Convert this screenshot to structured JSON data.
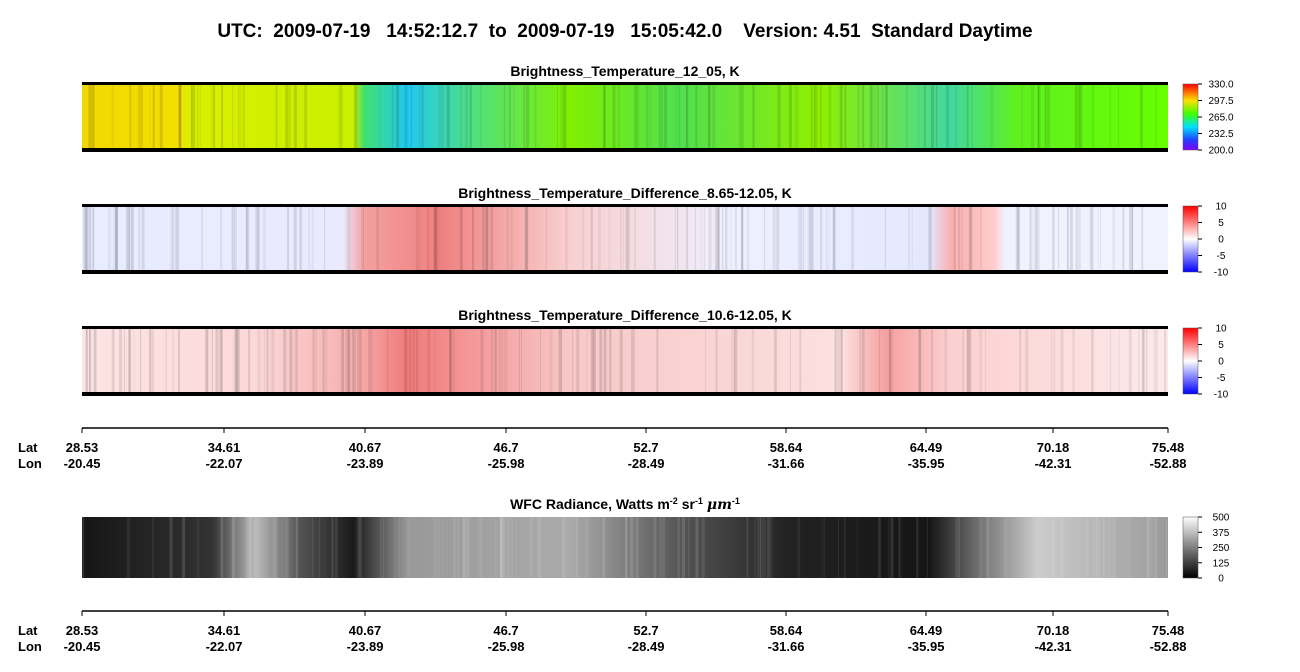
{
  "header": {
    "title": "UTC:  2009-07-19   14:52:12.7  to  2009-07-19   15:05:42.0    Version: 4.51  Standard Daytime"
  },
  "panels": [
    {
      "title": "Brightness_Temperature_12_05, K",
      "scale": "rainbow",
      "clim": [
        200,
        330
      ],
      "cticks": [
        {
          "value": 330,
          "label": "330.0"
        },
        {
          "value": 297.5,
          "label": "297.5"
        },
        {
          "value": 265,
          "label": "265.0"
        },
        {
          "value": 232.5,
          "label": "232.5"
        },
        {
          "value": 200,
          "label": "200.0"
        }
      ]
    },
    {
      "title": "Brightness_Temperature_Difference_8.65-12.05, K",
      "scale": "diverging",
      "clim": [
        -10,
        10
      ],
      "cticks": [
        10,
        5,
        0,
        -5,
        -10
      ]
    },
    {
      "title": "Brightness_Temperature_Difference_10.6-12.05, K",
      "scale": "diverging",
      "clim": [
        -10,
        10
      ],
      "cticks": [
        10,
        5,
        0,
        -5,
        -10
      ]
    },
    {
      "title_parts": [
        "WFC Radiance, Watts m",
        "-2",
        " sr",
        "-1",
        " ",
        "μm",
        "-1"
      ],
      "scale": "gray",
      "clim": [
        0,
        500
      ],
      "cticks": [
        500,
        375,
        250,
        125,
        0
      ]
    }
  ],
  "axis": {
    "lat_label": "Lat",
    "lon_label": "Lon",
    "lat": [
      28.53,
      34.61,
      40.67,
      46.7,
      52.7,
      58.64,
      64.49,
      70.18,
      75.48
    ],
    "lon": [
      -20.45,
      -22.07,
      -23.89,
      -25.98,
      -28.49,
      -31.66,
      -35.95,
      -42.31,
      -52.88
    ]
  }
}
